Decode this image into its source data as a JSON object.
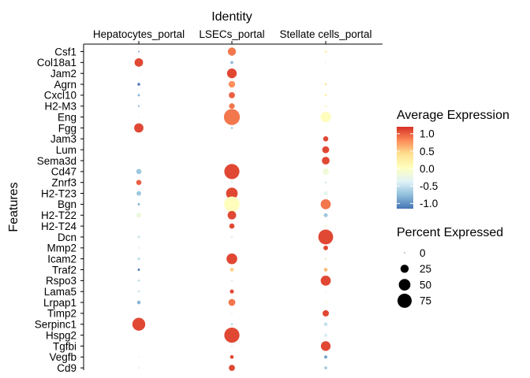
{
  "chart_data": {
    "type": "dot",
    "title": "",
    "top_axis_title": "Identity",
    "ylabel": "Features",
    "columns": [
      "Hepatocytes_portal",
      "LSECs_portal",
      "Stellate cells_portal"
    ],
    "features": [
      "Csf1",
      "Col18a1",
      "Jam2",
      "Agrn",
      "Cxcl10",
      "H2-M3",
      "Eng",
      "Fgg",
      "Jam3",
      "Lum",
      "Sema3d",
      "Cd47",
      "Znrf3",
      "H2-T23",
      "Bgn",
      "H2-T22",
      "H2-T24",
      "Dcn",
      "Mmp2",
      "Icam2",
      "Traf2",
      "Rspo3",
      "Lama5",
      "Lrpap1",
      "Timp2",
      "Serpinc1",
      "Hspg2",
      "Tgfbi",
      "Vegfb",
      "Cd9"
    ],
    "avg_expression": [
      [
        -0.9,
        0.9,
        0.2
      ],
      [
        1.1,
        -0.8,
        -0.2
      ],
      [
        -0.5,
        1.1,
        0.0
      ],
      [
        -1.1,
        0.8,
        0.3
      ],
      [
        -0.8,
        1.0,
        0.2
      ],
      [
        -0.9,
        0.9,
        0.2
      ],
      [
        -0.5,
        0.9,
        0.05
      ],
      [
        1.1,
        -0.6,
        -0.3
      ],
      [
        -0.4,
        -0.2,
        1.1
      ],
      [
        -0.4,
        -0.1,
        1.1
      ],
      [
        -0.4,
        -0.3,
        1.1
      ],
      [
        -0.7,
        1.1,
        -0.15
      ],
      [
        1.0,
        -0.3,
        -0.5
      ],
      [
        -0.7,
        1.1,
        -0.3
      ],
      [
        -0.8,
        0.05,
        0.9
      ],
      [
        -0.2,
        1.1,
        -0.7
      ],
      [
        -0.3,
        1.1,
        -0.1
      ],
      [
        -0.5,
        -0.3,
        1.1
      ],
      [
        -0.4,
        -0.2,
        1.1
      ],
      [
        -0.5,
        1.1,
        -0.2
      ],
      [
        -1.1,
        0.5,
        0.6
      ],
      [
        -0.5,
        -0.3,
        1.1
      ],
      [
        -0.6,
        1.1,
        -0.3
      ],
      [
        -0.8,
        0.9,
        -0.1
      ],
      [
        -0.4,
        -0.3,
        1.1
      ],
      [
        1.1,
        -0.5,
        -0.5
      ],
      [
        -0.4,
        1.1,
        -0.4
      ],
      [
        -0.4,
        -0.4,
        1.1
      ],
      [
        -0.3,
        1.1,
        -0.9
      ],
      [
        -0.4,
        1.1,
        -0.7
      ]
    ],
    "pct_expressed": [
      [
        1,
        25,
        2
      ],
      [
        27,
        3,
        1
      ],
      [
        0,
        35,
        0
      ],
      [
        3,
        16,
        2
      ],
      [
        2,
        14,
        2
      ],
      [
        1,
        12,
        1
      ],
      [
        0,
        95,
        40
      ],
      [
        32,
        2,
        1
      ],
      [
        0,
        0,
        10
      ],
      [
        0,
        0,
        18
      ],
      [
        0,
        0,
        22
      ],
      [
        10,
        85,
        15
      ],
      [
        10,
        2,
        1
      ],
      [
        8,
        50,
        7
      ],
      [
        2,
        90,
        38
      ],
      [
        10,
        27,
        6
      ],
      [
        0,
        10,
        2
      ],
      [
        2,
        2,
        82
      ],
      [
        1,
        0,
        8
      ],
      [
        3,
        43,
        3
      ],
      [
        2,
        5,
        5
      ],
      [
        2,
        2,
        38
      ],
      [
        1,
        6,
        1
      ],
      [
        5,
        18,
        1
      ],
      [
        0,
        1,
        15
      ],
      [
        62,
        2,
        5
      ],
      [
        0,
        86,
        4
      ],
      [
        0,
        1,
        35
      ],
      [
        1,
        5,
        4
      ],
      [
        1,
        14,
        3
      ]
    ],
    "color_scale": {
      "title": "Average Expression",
      "ticks": [
        "1.0",
        "0.5",
        "0.0",
        "-0.5",
        "-1.0"
      ],
      "tick_values": [
        1.0,
        0.5,
        0.0,
        -0.5,
        -1.0
      ],
      "range": [
        -1.15,
        1.2
      ],
      "colors": [
        "#4575b4",
        "#91bfdb",
        "#e0f3f8",
        "#ffffbf",
        "#fee090",
        "#fc8d59",
        "#d73027"
      ]
    },
    "size_scale": {
      "title": "Percent Expressed",
      "ticks": [
        "0",
        "25",
        "50",
        "75"
      ],
      "tick_values": [
        0,
        25,
        50,
        75
      ]
    },
    "grid": false,
    "legend_position": "right"
  }
}
